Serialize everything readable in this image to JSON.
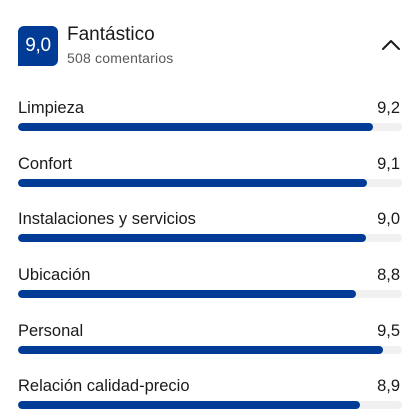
{
  "summary": {
    "score": "9,0",
    "rating_word": "Fantástico",
    "reviews": "508 comentarios",
    "accent_color": "#003b95",
    "collapse_icon": "chevron-up-icon"
  },
  "categories": [
    {
      "label": "Limpieza",
      "value": "9,2",
      "fill_fraction": 0.925
    },
    {
      "label": "Confort",
      "value": "9,1",
      "fill_fraction": 0.91
    },
    {
      "label": "Instalaciones y servicios",
      "value": "9,0",
      "fill_fraction": 0.905
    },
    {
      "label": "Ubicación",
      "value": "8,8",
      "fill_fraction": 0.88
    },
    {
      "label": "Personal",
      "value": "9,5",
      "fill_fraction": 0.95
    },
    {
      "label": "Relación calidad-precio",
      "value": "8,9",
      "fill_fraction": 0.89
    }
  ]
}
